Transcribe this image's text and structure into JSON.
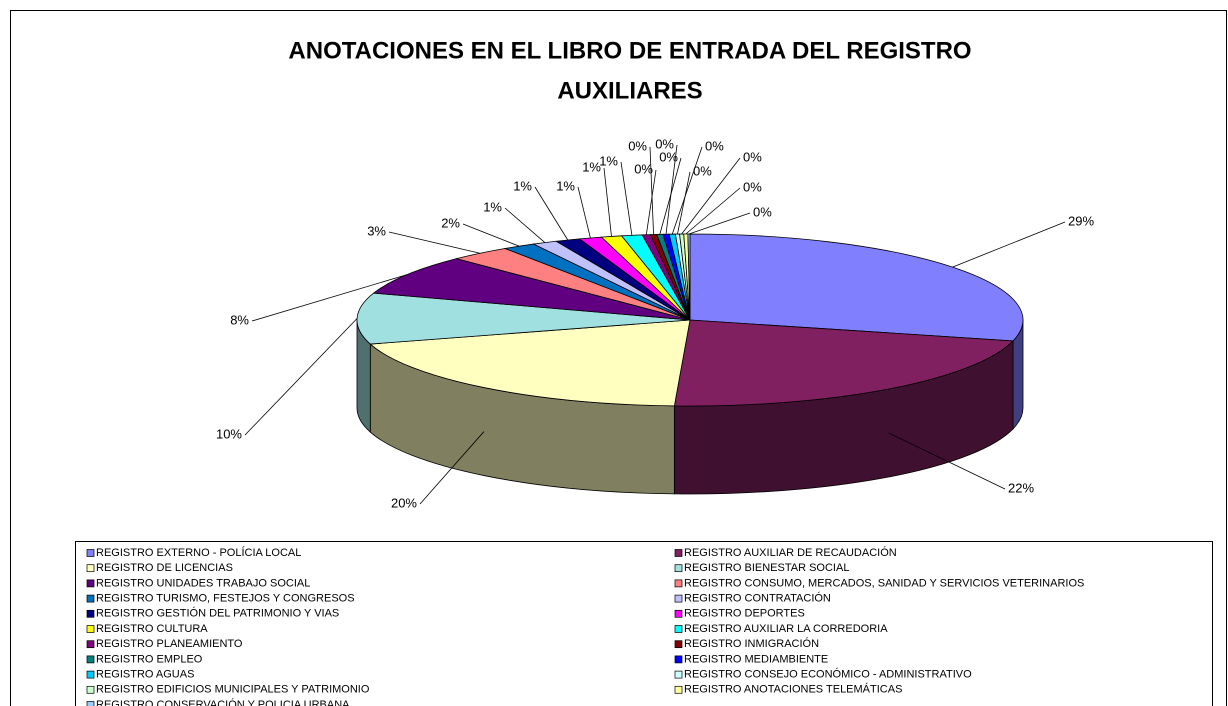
{
  "chart_data": {
    "type": "pie3d",
    "title": [
      "ANOTACIONES EN EL LIBRO DE ENTRADA DEL REGISTRO",
      "AUXILIARES"
    ],
    "categories": [
      "REGISTRO EXTERNO - POLÍCIA LOCAL",
      "REGISTRO AUXILIAR DE RECAUDACIÓN",
      "REGISTRO DE LICENCIAS",
      "REGISTRO BIENESTAR SOCIAL",
      "REGISTRO UNIDADES TRABAJO SOCIAL",
      "REGISTRO CONSUMO, MERCADOS, SANIDAD Y SERVICIOS VETERINARIOS",
      "REGISTRO TURISMO, FESTEJOS Y CONGRESOS",
      "REGISTRO CONTRATACIÓN",
      "REGISTRO GESTIÓN DEL PATRIMONIO Y VIAS",
      "REGISTRO DEPORTES",
      "REGISTRO CULTURA",
      "REGISTRO AUXILIAR LA CORREDORIA",
      "REGISTRO PLANEAMIENTO",
      "REGISTRO INMIGRACIÓN",
      "REGISTRO EMPLEO",
      "REGISTRO MEDIAMBIENTE",
      "REGISTRO AGUAS",
      "REGISTRO CONSEJO ECONÓMICO - ADMINISTRATIVO",
      "REGISTRO EDIFICIOS MUNICIPALES Y PATRIMONIO",
      "REGISTRO ANOTACIONES TELEMÁTICAS",
      "REGISTRO CONSERVACIÓN Y POLICIA URBANA"
    ],
    "values": [
      29.0,
      21.9,
      19.8,
      9.6,
      7.6,
      3.0,
      1.6,
      1.2,
      1.2,
      1.1,
      1.0,
      1.0,
      0.4,
      0.3,
      0.3,
      0.3,
      0.3,
      0.2,
      0.2,
      0.2,
      0.1
    ],
    "value_labels": [
      "29%",
      "22%",
      "20%",
      "10%",
      "8%",
      "3%",
      "2%",
      "1%",
      "1%",
      "1%",
      "1%",
      "1%",
      "0%",
      "0%",
      "0%",
      "0%",
      "0%",
      "0%",
      "0%",
      "0%",
      "0%"
    ],
    "colors": [
      "#8080FF",
      "#802060",
      "#FFFFC0",
      "#A0E0E0",
      "#600080",
      "#FF8080",
      "#0070C0",
      "#C0C0FF",
      "#000080",
      "#FF00FF",
      "#FFFF00",
      "#00FFFF",
      "#800080",
      "#800000",
      "#008080",
      "#0000FF",
      "#00CCFF",
      "#CCFFFF",
      "#CCFFCC",
      "#FFFF99",
      "#99CCFF"
    ],
    "legend": "bottom"
  }
}
